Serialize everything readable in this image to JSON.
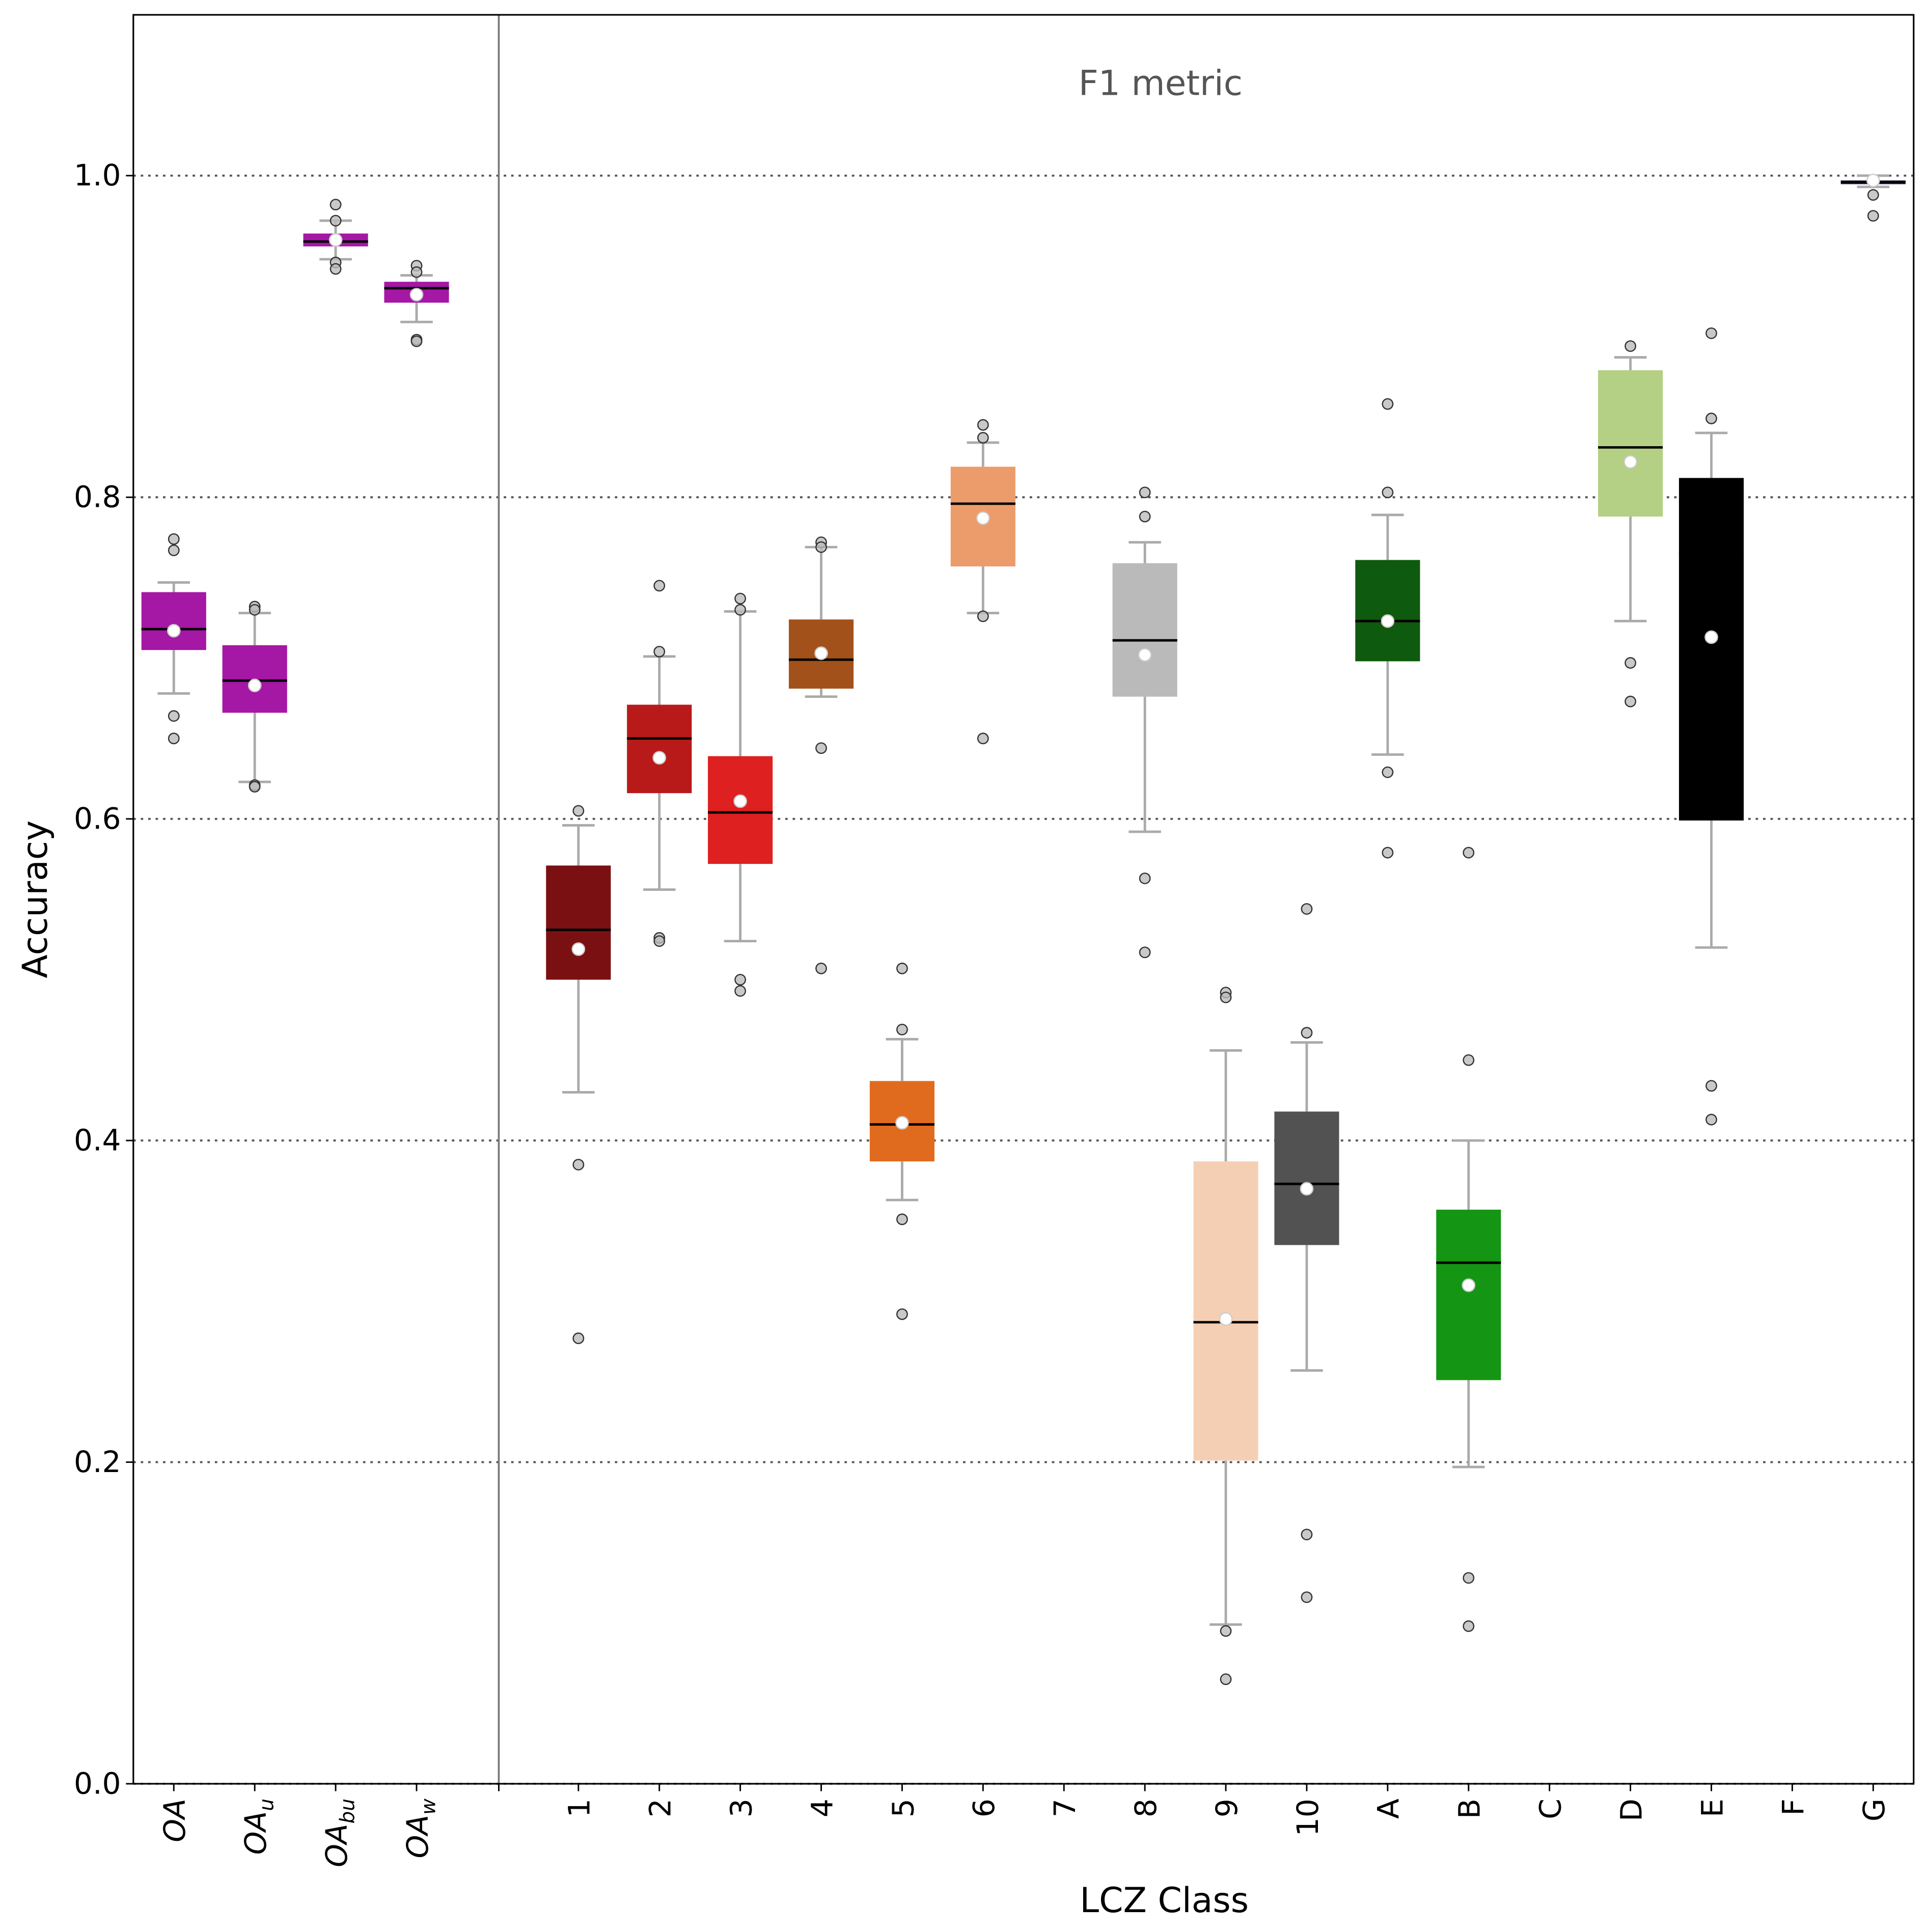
{
  "chart_data": {
    "type": "box",
    "title": "F1 metric",
    "xlabel": "LCZ Class",
    "ylabel": "Accuracy",
    "ylim": [
      0,
      1.1
    ],
    "yticks": [
      0.0,
      0.2,
      0.4,
      0.6,
      0.8,
      1.0
    ],
    "ytick_labels": [
      "0.0",
      "0.2",
      "0.4",
      "0.6",
      "0.8",
      "1.0"
    ],
    "grid": "horizontal dotted",
    "divider_after_index": 3,
    "categories": [
      {
        "label": "OA",
        "sub": "",
        "italic": true,
        "color": "#a517a5",
        "q1": 0.705,
        "median": 0.718,
        "q3": 0.741,
        "mean": 0.717,
        "whislo": 0.678,
        "whishi": 0.747,
        "fliers": [
          0.774,
          0.767,
          0.664,
          0.65
        ]
      },
      {
        "label": "OA",
        "sub": "u",
        "italic": true,
        "color": "#a517a5",
        "q1": 0.666,
        "median": 0.686,
        "q3": 0.708,
        "mean": 0.683,
        "whislo": 0.623,
        "whishi": 0.728,
        "fliers": [
          0.732,
          0.73,
          0.621,
          0.62
        ]
      },
      {
        "label": "OA",
        "sub": "bu",
        "italic": true,
        "color": "#a517a5",
        "q1": 0.956,
        "median": 0.959,
        "q3": 0.964,
        "mean": 0.96,
        "whislo": 0.948,
        "whishi": 0.972,
        "fliers": [
          0.982,
          0.972,
          0.946,
          0.942
        ]
      },
      {
        "label": "OA",
        "sub": "w",
        "italic": true,
        "color": "#a517a5",
        "q1": 0.921,
        "median": 0.93,
        "q3": 0.934,
        "mean": 0.926,
        "whislo": 0.909,
        "whishi": 0.938,
        "fliers": [
          0.944,
          0.94,
          0.898,
          0.897
        ]
      },
      {
        "label": "1",
        "color": "#7b1012",
        "q1": 0.5,
        "median": 0.531,
        "q3": 0.571,
        "mean": 0.519,
        "whislo": 0.43,
        "whishi": 0.596,
        "fliers": [
          0.605,
          0.385,
          0.277
        ]
      },
      {
        "label": "2",
        "color": "#b81a1a",
        "q1": 0.616,
        "median": 0.65,
        "q3": 0.671,
        "mean": 0.638,
        "whislo": 0.556,
        "whishi": 0.701,
        "fliers": [
          0.745,
          0.704,
          0.526,
          0.524
        ]
      },
      {
        "label": "3",
        "color": "#de2020",
        "q1": 0.572,
        "median": 0.604,
        "q3": 0.639,
        "mean": 0.611,
        "whislo": 0.524,
        "whishi": 0.729,
        "fliers": [
          0.737,
          0.73,
          0.5,
          0.493
        ]
      },
      {
        "label": "4",
        "color": "#a3511a",
        "q1": 0.681,
        "median": 0.699,
        "q3": 0.724,
        "mean": 0.703,
        "whislo": 0.676,
        "whishi": 0.769,
        "fliers": [
          0.772,
          0.769,
          0.644,
          0.507
        ]
      },
      {
        "label": "5",
        "color": "#e06b1f",
        "q1": 0.387,
        "median": 0.41,
        "q3": 0.437,
        "mean": 0.411,
        "whislo": 0.363,
        "whishi": 0.463,
        "fliers": [
          0.507,
          0.469,
          0.351,
          0.292
        ]
      },
      {
        "label": "6",
        "color": "#ec9c6a",
        "q1": 0.757,
        "median": 0.796,
        "q3": 0.819,
        "mean": 0.787,
        "whislo": 0.728,
        "whishi": 0.834,
        "fliers": [
          0.845,
          0.837,
          0.726,
          0.65
        ]
      },
      {
        "label": "7",
        "color": null
      },
      {
        "label": "8",
        "color": "#bababa",
        "q1": 0.676,
        "median": 0.711,
        "q3": 0.759,
        "mean": 0.702,
        "whislo": 0.592,
        "whishi": 0.772,
        "fliers": [
          0.803,
          0.788,
          0.563,
          0.517
        ]
      },
      {
        "label": "9",
        "color": "#f5cfb4",
        "q1": 0.201,
        "median": 0.287,
        "q3": 0.387,
        "mean": 0.289,
        "whislo": 0.099,
        "whishi": 0.456,
        "fliers": [
          0.492,
          0.489,
          0.095,
          0.065
        ]
      },
      {
        "label": "10",
        "color": "#525252",
        "q1": 0.335,
        "median": 0.373,
        "q3": 0.418,
        "mean": 0.37,
        "whislo": 0.257,
        "whishi": 0.461,
        "fliers": [
          0.544,
          0.467,
          0.155,
          0.116
        ]
      },
      {
        "label": "A",
        "color": "#0e5a0e",
        "q1": 0.698,
        "median": 0.723,
        "q3": 0.761,
        "mean": 0.723,
        "whislo": 0.64,
        "whishi": 0.789,
        "fliers": [
          0.858,
          0.803,
          0.629,
          0.579
        ]
      },
      {
        "label": "B",
        "color": "#149614",
        "q1": 0.251,
        "median": 0.324,
        "q3": 0.357,
        "mean": 0.31,
        "whislo": 0.197,
        "whishi": 0.4,
        "fliers": [
          0.579,
          0.45,
          0.128,
          0.098
        ]
      },
      {
        "label": "C",
        "color": null
      },
      {
        "label": "D",
        "color": "#b4d084",
        "q1": 0.788,
        "median": 0.831,
        "q3": 0.879,
        "mean": 0.822,
        "whislo": 0.723,
        "whishi": 0.887,
        "fliers": [
          0.894,
          0.697,
          0.673
        ]
      },
      {
        "label": "E",
        "color": "#000000",
        "q1": 0.599,
        "median": 0.765,
        "q3": 0.812,
        "mean": 0.713,
        "whislo": 0.52,
        "whishi": 0.84,
        "fliers": [
          0.902,
          0.849,
          0.434,
          0.413
        ]
      },
      {
        "label": "F",
        "color": null
      },
      {
        "label": "G",
        "color": "#1a1a50",
        "q1": 0.995,
        "median": 0.996,
        "q3": 0.997,
        "mean": 0.997,
        "whislo": 0.993,
        "whishi": 1.0,
        "fliers": [
          0.988,
          0.975
        ]
      }
    ]
  }
}
